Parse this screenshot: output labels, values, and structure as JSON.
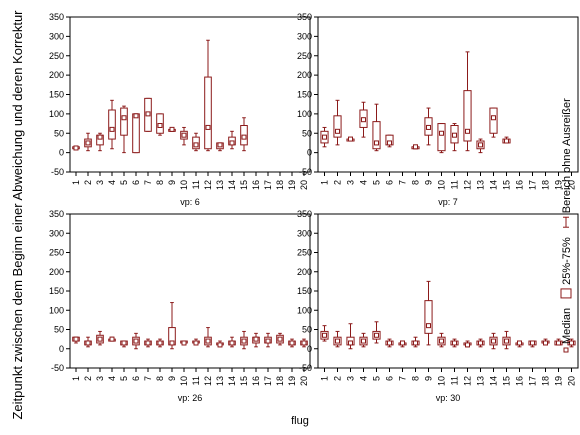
{
  "chart_data": {
    "type": "boxplot",
    "ylabel": "Zeitpunkt zwischen dem Beginn einer Abweichung und deren Korrektur",
    "xlabel": "flug",
    "ylim": [
      -50,
      350
    ],
    "yticks": [
      -50,
      0,
      50,
      100,
      150,
      200,
      250,
      300,
      350
    ],
    "categories": [
      "1",
      "2",
      "3",
      "4",
      "5",
      "6",
      "7",
      "8",
      "9",
      "10",
      "11",
      "12",
      "13",
      "14",
      "15",
      "16",
      "17",
      "18",
      "19",
      "20"
    ],
    "grid": false,
    "legend": {
      "position": "right",
      "items": [
        {
          "symbol": "median",
          "label": "Median"
        },
        {
          "symbol": "box",
          "label": "25%-75%"
        },
        {
          "symbol": "whisker",
          "label": "Bereich ohne Ausreißer"
        }
      ]
    },
    "colors": {
      "box": "#8b1a1a",
      "frame": "#000000"
    },
    "panels": [
      {
        "label": "vp: 6",
        "boxes": [
          {
            "x": "1",
            "min": 10,
            "q1": 10,
            "median": 12,
            "q3": 15,
            "max": 15
          },
          {
            "x": "2",
            "min": 5,
            "q1": 15,
            "median": 25,
            "q3": 35,
            "max": 50
          },
          {
            "x": "3",
            "min": 5,
            "q1": 20,
            "median": 40,
            "q3": 45,
            "max": 50
          },
          {
            "x": "4",
            "min": 10,
            "q1": 35,
            "median": 60,
            "q3": 110,
            "max": 135
          },
          {
            "x": "5",
            "min": 0,
            "q1": 45,
            "median": 90,
            "q3": 115,
            "max": 120
          },
          {
            "x": "6",
            "min": 0,
            "q1": 0,
            "median": 95,
            "q3": 100,
            "max": 100
          },
          {
            "x": "7",
            "min": 55,
            "q1": 55,
            "median": 100,
            "q3": 140,
            "max": 140
          },
          {
            "x": "8",
            "min": 45,
            "q1": 50,
            "median": 70,
            "q3": 100,
            "max": 100
          },
          {
            "x": "9",
            "min": 55,
            "q1": 55,
            "median": 60,
            "q3": 60,
            "max": 60
          },
          {
            "x": "10",
            "min": 20,
            "q1": 35,
            "median": 45,
            "q3": 55,
            "max": 65
          },
          {
            "x": "11",
            "min": 5,
            "q1": 10,
            "median": 20,
            "q3": 40,
            "max": 50
          },
          {
            "x": "12",
            "min": 5,
            "q1": 10,
            "median": 65,
            "q3": 195,
            "max": 290
          },
          {
            "x": "13",
            "min": 5,
            "q1": 10,
            "median": 20,
            "q3": 25,
            "max": 25
          },
          {
            "x": "14",
            "min": 10,
            "q1": 20,
            "median": 25,
            "q3": 40,
            "max": 55
          },
          {
            "x": "15",
            "min": 5,
            "q1": 20,
            "median": 40,
            "q3": 70,
            "max": 90
          }
        ]
      },
      {
        "label": "vp: 7",
        "boxes": [
          {
            "x": "1",
            "min": 15,
            "q1": 25,
            "median": 40,
            "q3": 55,
            "max": 65
          },
          {
            "x": "2",
            "min": 20,
            "q1": 40,
            "median": 55,
            "q3": 95,
            "max": 135
          },
          {
            "x": "3",
            "min": 30,
            "q1": 30,
            "median": 35,
            "q3": 35,
            "max": 35
          },
          {
            "x": "4",
            "min": 40,
            "q1": 65,
            "median": 85,
            "q3": 110,
            "max": 130
          },
          {
            "x": "5",
            "min": 5,
            "q1": 10,
            "median": 25,
            "q3": 80,
            "max": 125
          },
          {
            "x": "6",
            "min": 15,
            "q1": 20,
            "median": 25,
            "q3": 45,
            "max": 45
          },
          {
            "x": "8",
            "min": 10,
            "q1": 10,
            "median": 15,
            "q3": 15,
            "max": 15
          },
          {
            "x": "9",
            "min": 20,
            "q1": 45,
            "median": 65,
            "q3": 90,
            "max": 115
          },
          {
            "x": "10",
            "min": 0,
            "q1": 5,
            "median": 50,
            "q3": 75,
            "max": 75
          },
          {
            "x": "11",
            "min": 5,
            "q1": 25,
            "median": 45,
            "q3": 70,
            "max": 75
          },
          {
            "x": "12",
            "min": 5,
            "q1": 30,
            "median": 55,
            "q3": 160,
            "max": 260
          },
          {
            "x": "13",
            "min": 0,
            "q1": 10,
            "median": 20,
            "q3": 30,
            "max": 35
          },
          {
            "x": "14",
            "min": 40,
            "q1": 50,
            "median": 90,
            "q3": 115,
            "max": 115
          },
          {
            "x": "15",
            "min": 25,
            "q1": 25,
            "median": 30,
            "q3": 35,
            "max": 40
          }
        ]
      },
      {
        "label": "vp: 26",
        "boxes": [
          {
            "x": "1",
            "min": 15,
            "q1": 20,
            "median": 25,
            "q3": 30,
            "max": 30
          },
          {
            "x": "2",
            "min": 5,
            "q1": 10,
            "median": 15,
            "q3": 20,
            "max": 30
          },
          {
            "x": "3",
            "min": 10,
            "q1": 15,
            "median": 25,
            "q3": 35,
            "max": 45
          },
          {
            "x": "4",
            "min": 20,
            "q1": 20,
            "median": 25,
            "q3": 25,
            "max": 30
          },
          {
            "x": "5",
            "min": 5,
            "q1": 10,
            "median": 15,
            "q3": 20,
            "max": 20
          },
          {
            "x": "6",
            "min": 0,
            "q1": 10,
            "median": 20,
            "q3": 30,
            "max": 40
          },
          {
            "x": "7",
            "min": 5,
            "q1": 10,
            "median": 15,
            "q3": 20,
            "max": 25
          },
          {
            "x": "8",
            "min": 5,
            "q1": 10,
            "median": 15,
            "q3": 20,
            "max": 25
          },
          {
            "x": "9",
            "min": 0,
            "q1": 10,
            "median": 15,
            "q3": 55,
            "max": 120
          },
          {
            "x": "10",
            "min": 10,
            "q1": 15,
            "median": 15,
            "q3": 20,
            "max": 20
          },
          {
            "x": "11",
            "min": 10,
            "q1": 15,
            "median": 15,
            "q3": 20,
            "max": 25
          },
          {
            "x": "12",
            "min": 5,
            "q1": 10,
            "median": 20,
            "q3": 30,
            "max": 55
          },
          {
            "x": "13",
            "min": 5,
            "q1": 10,
            "median": 10,
            "q3": 15,
            "max": 20
          },
          {
            "x": "14",
            "min": 5,
            "q1": 10,
            "median": 15,
            "q3": 20,
            "max": 30
          },
          {
            "x": "15",
            "min": 0,
            "q1": 10,
            "median": 20,
            "q3": 30,
            "max": 45
          },
          {
            "x": "16",
            "min": 5,
            "q1": 15,
            "median": 25,
            "q3": 30,
            "max": 40
          },
          {
            "x": "17",
            "min": 5,
            "q1": 15,
            "median": 20,
            "q3": 30,
            "max": 40
          },
          {
            "x": "18",
            "min": 10,
            "q1": 15,
            "median": 25,
            "q3": 35,
            "max": 40
          },
          {
            "x": "19",
            "min": 5,
            "q1": 10,
            "median": 15,
            "q3": 20,
            "max": 25
          },
          {
            "x": "20",
            "min": 5,
            "q1": 10,
            "median": 15,
            "q3": 20,
            "max": 25
          }
        ]
      },
      {
        "label": "vp: 30",
        "boxes": [
          {
            "x": "1",
            "min": 20,
            "q1": 25,
            "median": 35,
            "q3": 45,
            "max": 60
          },
          {
            "x": "2",
            "min": 5,
            "q1": 10,
            "median": 20,
            "q3": 30,
            "max": 45
          },
          {
            "x": "3",
            "min": 0,
            "q1": 10,
            "median": 15,
            "q3": 30,
            "max": 65
          },
          {
            "x": "4",
            "min": 5,
            "q1": 10,
            "median": 20,
            "q3": 30,
            "max": 40
          },
          {
            "x": "5",
            "min": 15,
            "q1": 25,
            "median": 35,
            "q3": 45,
            "max": 70
          },
          {
            "x": "6",
            "min": 5,
            "q1": 10,
            "median": 15,
            "q3": 20,
            "max": 25
          },
          {
            "x": "7",
            "min": 5,
            "q1": 10,
            "median": 15,
            "q3": 15,
            "max": 20
          },
          {
            "x": "8",
            "min": 5,
            "q1": 10,
            "median": 15,
            "q3": 20,
            "max": 30
          },
          {
            "x": "9",
            "min": 10,
            "q1": 40,
            "median": 60,
            "q3": 125,
            "max": 175
          },
          {
            "x": "10",
            "min": 5,
            "q1": 10,
            "median": 20,
            "q3": 30,
            "max": 40
          },
          {
            "x": "11",
            "min": 5,
            "q1": 10,
            "median": 15,
            "q3": 20,
            "max": 25
          },
          {
            "x": "12",
            "min": 5,
            "q1": 10,
            "median": 10,
            "q3": 15,
            "max": 20
          },
          {
            "x": "13",
            "min": 5,
            "q1": 10,
            "median": 15,
            "q3": 20,
            "max": 25
          },
          {
            "x": "14",
            "min": 0,
            "q1": 10,
            "median": 20,
            "q3": 30,
            "max": 40
          },
          {
            "x": "15",
            "min": 0,
            "q1": 10,
            "median": 20,
            "q3": 30,
            "max": 45
          },
          {
            "x": "16",
            "min": 5,
            "q1": 10,
            "median": 15,
            "q3": 15,
            "max": 20
          },
          {
            "x": "17",
            "min": 5,
            "q1": 10,
            "median": 15,
            "q3": 20,
            "max": 20
          },
          {
            "x": "18",
            "min": 10,
            "q1": 15,
            "median": 15,
            "q3": 20,
            "max": 25
          },
          {
            "x": "19",
            "min": 10,
            "q1": 10,
            "median": 15,
            "q3": 20,
            "max": 25
          },
          {
            "x": "20",
            "min": 5,
            "q1": 10,
            "median": 15,
            "q3": 20,
            "max": 25
          }
        ]
      }
    ]
  }
}
